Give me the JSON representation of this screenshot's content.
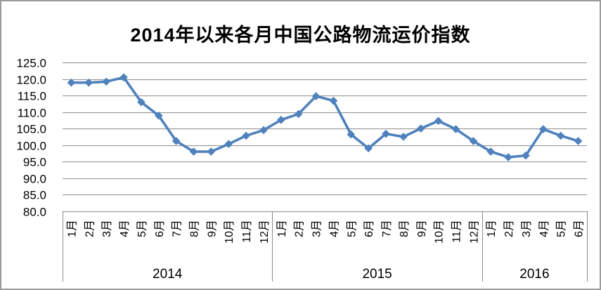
{
  "chart_data": {
    "type": "line",
    "title": "2014年以来各月中国公路物流运价指数",
    "series": [
      {
        "name": "中国公路物流运价指数",
        "values": [
          118.9,
          118.9,
          119.2,
          120.5,
          113.0,
          108.9,
          101.2,
          98.0,
          98.0,
          100.3,
          102.8,
          104.5,
          107.6,
          109.4,
          114.8,
          113.4,
          103.2,
          99.0,
          103.4,
          102.5,
          105.0,
          107.3,
          104.8,
          101.2,
          98.0,
          96.3,
          96.8,
          104.8,
          102.8,
          101.2
        ]
      }
    ],
    "categories": [
      "1月",
      "2月",
      "3月",
      "4月",
      "5月",
      "6月",
      "7月",
      "8月",
      "9月",
      "10月",
      "11月",
      "12月",
      "1月",
      "2月",
      "3月",
      "4月",
      "5月",
      "6月",
      "7月",
      "8月",
      "9月",
      "10月",
      "11月",
      "12月",
      "1月",
      "2月",
      "3月",
      "4月",
      "5月",
      "6月"
    ],
    "year_groups": [
      {
        "label": "2014",
        "months": 12
      },
      {
        "label": "2015",
        "months": 12
      },
      {
        "label": "2016",
        "months": 6
      }
    ],
    "ylim": [
      80,
      125
    ],
    "ytick_step": 5,
    "ytick_labels": [
      "125.0",
      "120.0",
      "115.0",
      "110.0",
      "105.0",
      "100.0",
      "95.0",
      "90.0",
      "85.0",
      "80.0"
    ],
    "grid": true,
    "legend": "none",
    "line_color": "#4F81BD",
    "marker": "diamond",
    "gridline_color": "#8c8c8c",
    "axis_color": "#8c8c8c",
    "text_color": "#000000"
  }
}
